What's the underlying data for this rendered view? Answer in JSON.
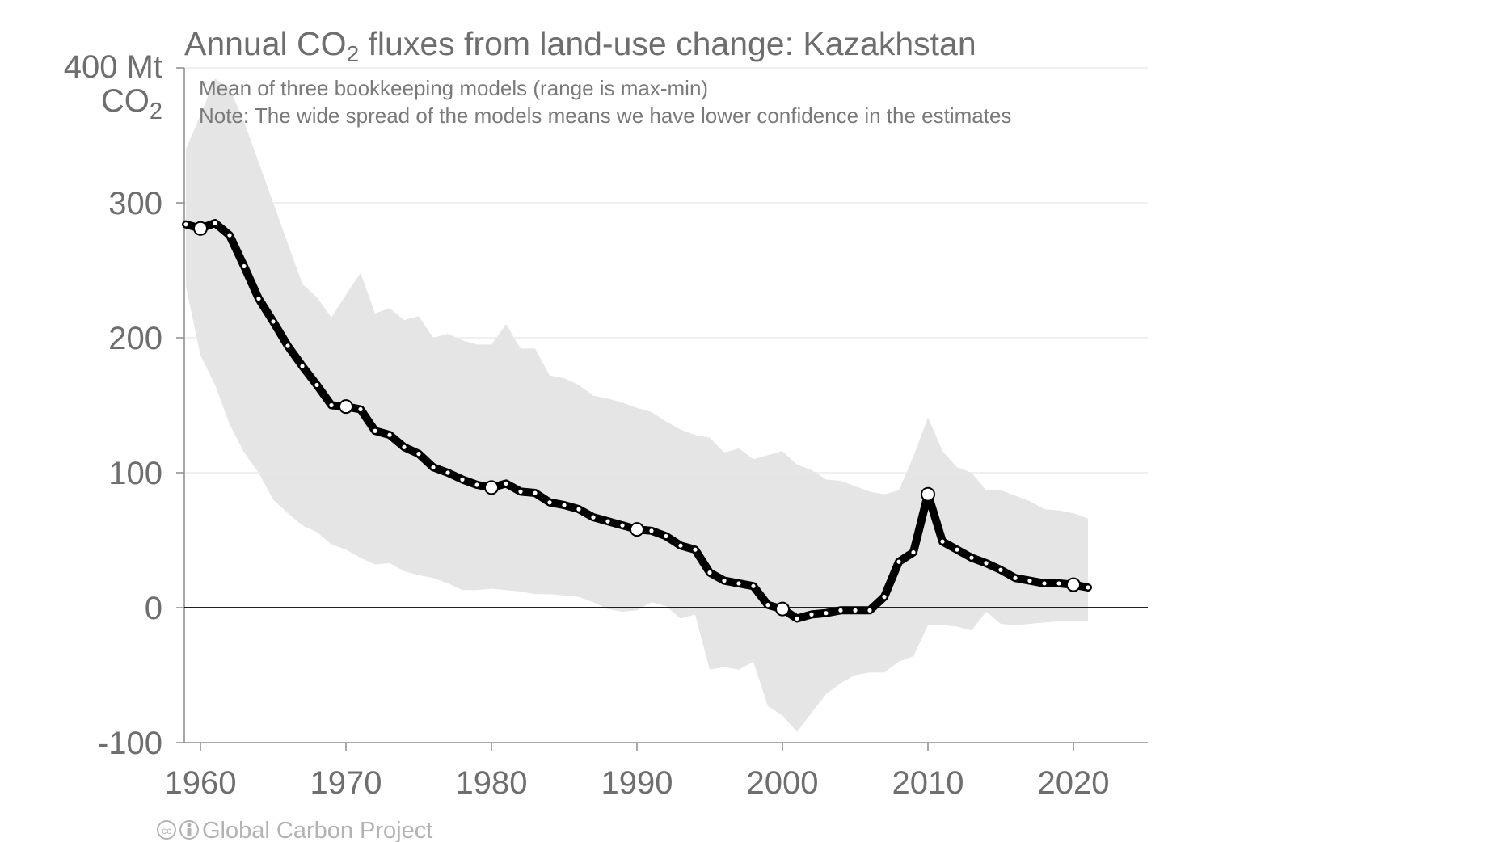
{
  "chart_data": {
    "type": "line",
    "title": {
      "prefix": "Annual CO",
      "subscript": "2",
      "suffix": " fluxes from land-use change: Kazakhstan"
    },
    "notes": [
      "Mean of three bookkeeping models (range is max-min)",
      "Note: The wide spread of the models means we have lower confidence in the estimates"
    ],
    "ylabel": {
      "line1": "400 Mt",
      "line2_main": "CO",
      "line2_sub": "2"
    },
    "xlim": [
      1959,
      2025
    ],
    "ylim": [
      -100,
      400
    ],
    "xticks": [
      1960,
      1970,
      1980,
      1990,
      2000,
      2010,
      2020
    ],
    "yticks": [
      {
        "value": 300,
        "label": "300"
      },
      {
        "value": 200,
        "label": "200"
      },
      {
        "value": 100,
        "label": "100"
      },
      {
        "value": 0,
        "label": "0"
      },
      {
        "value": -100,
        "label": "-100"
      }
    ],
    "grid": true,
    "x": [
      1959,
      1960,
      1961,
      1962,
      1963,
      1964,
      1965,
      1966,
      1967,
      1968,
      1969,
      1970,
      1971,
      1972,
      1973,
      1974,
      1975,
      1976,
      1977,
      1978,
      1979,
      1980,
      1981,
      1982,
      1983,
      1984,
      1985,
      1986,
      1987,
      1988,
      1989,
      1990,
      1991,
      1992,
      1993,
      1994,
      1995,
      1996,
      1997,
      1998,
      1999,
      2000,
      2001,
      2002,
      2003,
      2004,
      2005,
      2006,
      2007,
      2008,
      2009,
      2010,
      2011,
      2012,
      2013,
      2014,
      2015,
      2016,
      2017,
      2018,
      2019,
      2020,
      2021
    ],
    "series": [
      {
        "type": "line",
        "color": "#000000",
        "values": [
          284,
          281,
          285,
          276,
          253,
          229,
          212,
          194,
          179,
          165,
          150,
          149,
          147,
          131,
          128,
          119,
          114,
          104,
          100,
          95,
          91,
          89,
          92,
          86,
          85,
          78,
          76,
          73,
          67,
          64,
          61,
          58,
          57,
          53,
          46,
          43,
          26,
          20,
          18,
          16,
          2,
          -1,
          -8,
          -5,
          -4,
          -2,
          -2,
          -2,
          8,
          34,
          41,
          84,
          49,
          43,
          37,
          33,
          28,
          22,
          20,
          18,
          18,
          17,
          15
        ]
      },
      {
        "type": "band",
        "color": "#e5e5e5",
        "upper": [
          340,
          365,
          392,
          385,
          360,
          330,
          300,
          270,
          240,
          230,
          215,
          232,
          248,
          218,
          222,
          213,
          216,
          200,
          203,
          198,
          195,
          195,
          210,
          192,
          192,
          172,
          170,
          165,
          157,
          155,
          152,
          148,
          145,
          138,
          132,
          128,
          126,
          115,
          118,
          110,
          113,
          116,
          106,
          102,
          95,
          94,
          90,
          86,
          84,
          87,
          112,
          141,
          116,
          104,
          100,
          87,
          87,
          83,
          79,
          73,
          72,
          70,
          66
        ],
        "lower": [
          238,
          187,
          165,
          136,
          115,
          100,
          80,
          70,
          61,
          56,
          47,
          43,
          37,
          32,
          33,
          27,
          24,
          22,
          18,
          13,
          13,
          14,
          13,
          12,
          10,
          10,
          9,
          8,
          4,
          -1,
          -3,
          -2,
          4,
          1,
          -8,
          -5,
          -46,
          -44,
          -46,
          -40,
          -73,
          -80,
          -92,
          -78,
          -64,
          -56,
          -50,
          -48,
          -48,
          -40,
          -36,
          -13,
          -13,
          -14,
          -17,
          -3,
          -12,
          -13,
          -12,
          -11,
          -10,
          -10,
          -10
        ]
      }
    ],
    "highlighted_years": [
      1960,
      1970,
      1980,
      1990,
      2000,
      2010,
      2020
    ],
    "footer": "Global Carbon Project",
    "footer_icons": [
      "cc-icon",
      "by-icon"
    ]
  }
}
